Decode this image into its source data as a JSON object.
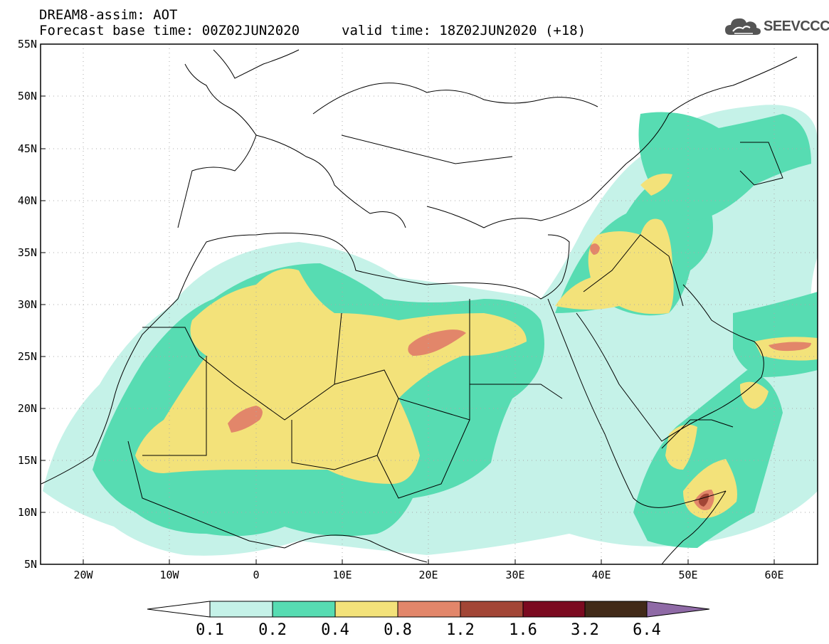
{
  "header": {
    "line1": "DREAM8-assim: AOT",
    "line2": "Forecast base time: 00Z02JUN2020",
    "valid": "valid time: 18Z02JUN2020 (+18)"
  },
  "logo": {
    "text": "SEEVCCC",
    "icon": "cloud-icon"
  },
  "map": {
    "lat_labels": [
      "55N",
      "50N",
      "45N",
      "40N",
      "35N",
      "30N",
      "25N",
      "20N",
      "15N",
      "10N",
      "5N"
    ],
    "lon_labels": [
      "20W",
      "10W",
      "0",
      "10E",
      "20E",
      "30E",
      "40E",
      "50E",
      "60E"
    ]
  },
  "colorbar": {
    "labels": [
      "0.1",
      "0.2",
      "0.4",
      "0.8",
      "1.2",
      "1.6",
      "3.2",
      "6.4"
    ],
    "colors": [
      "#c5f2e8",
      "#57dcb2",
      "#f3e27a",
      "#e2866a",
      "#a24636",
      "#7b0a20",
      "#412a18",
      "#8f6aa6"
    ]
  }
}
